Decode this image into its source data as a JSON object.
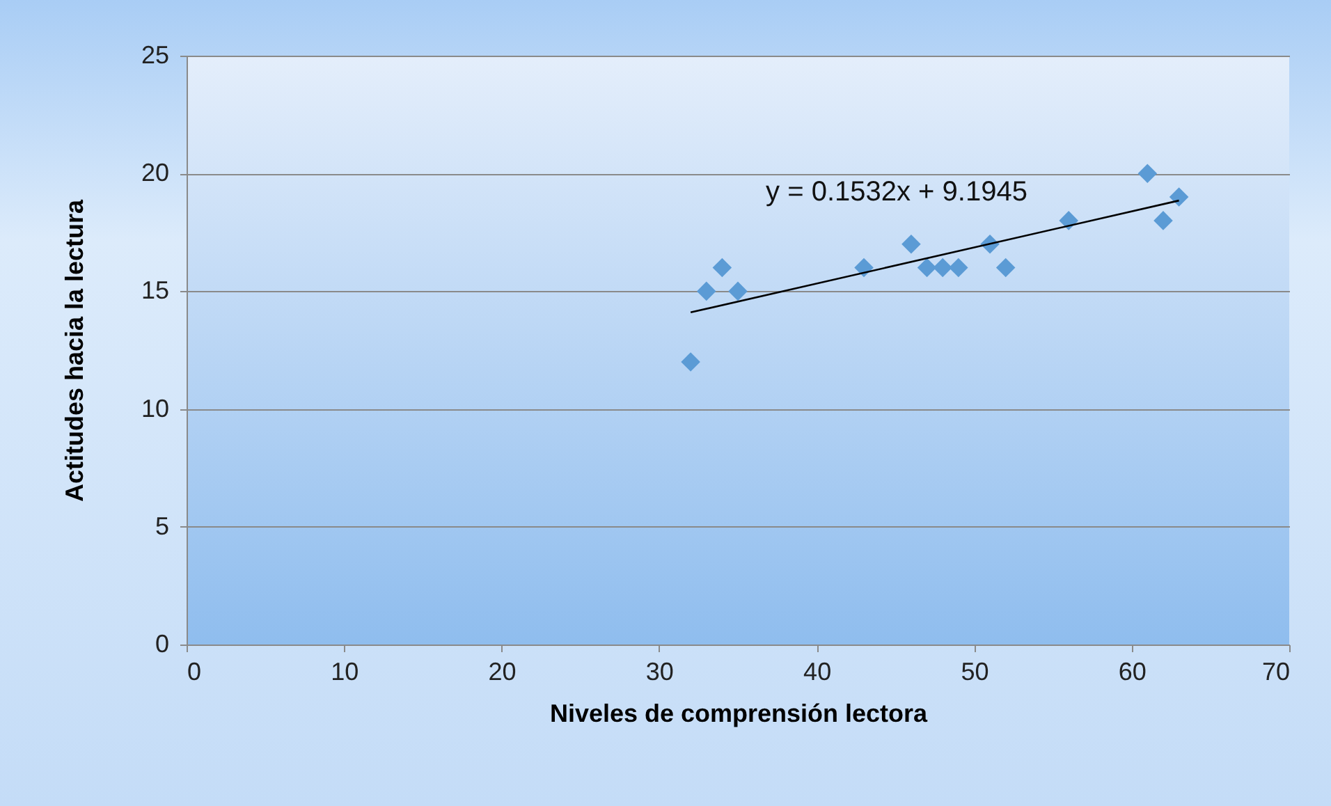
{
  "chart_data": {
    "type": "scatter",
    "xlabel": "Niveles de comprensión lectora",
    "ylabel": "Actitudes hacia la lectura",
    "annotations": [
      "y = 0.1532x + 9.1945"
    ],
    "series": [
      {
        "color": "#5b9bd5",
        "marker": "diamond",
        "x": [
          32,
          33,
          34,
          35,
          43,
          46,
          47,
          48,
          49,
          51,
          52,
          56,
          61,
          62,
          63
        ],
        "values": [
          12,
          15,
          16,
          15,
          16,
          17,
          16,
          16,
          16,
          17,
          16,
          18,
          20,
          18,
          19
        ]
      },
      {
        "type": "line",
        "color": "#000000",
        "line_style": "solid",
        "x": [
          32,
          63
        ],
        "values": [
          14.1,
          18.85
        ]
      }
    ],
    "xlim": [
      0,
      70
    ],
    "xticks": [
      0,
      10,
      20,
      30,
      40,
      50,
      60,
      70
    ],
    "ylim": [
      0,
      25
    ],
    "yticks": [
      0,
      5,
      10,
      15,
      20,
      25
    ],
    "grid": "y"
  }
}
